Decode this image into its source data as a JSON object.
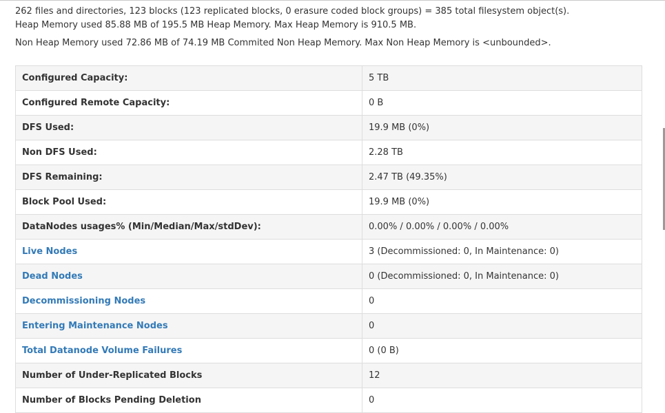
{
  "summary": {
    "line1": "262 files and directories, 123 blocks (123 replicated blocks, 0 erasure coded block groups) = 385 total filesystem object(s).",
    "line2": "Heap Memory used 85.88 MB of 195.5 MB Heap Memory. Max Heap Memory is 910.5 MB.",
    "line3": "Non Heap Memory used 72.86 MB of 74.19 MB Commited Non Heap Memory. Max Non Heap Memory is <unbounded>."
  },
  "rows": [
    {
      "label": "Configured Capacity:",
      "value": "5 TB"
    },
    {
      "label": "Configured Remote Capacity:",
      "value": "0 B"
    },
    {
      "label": "DFS Used:",
      "value": "19.9 MB (0%)"
    },
    {
      "label": "Non DFS Used:",
      "value": "2.28 TB"
    },
    {
      "label": "DFS Remaining:",
      "value": "2.47 TB (49.35%)"
    },
    {
      "label": "Block Pool Used:",
      "value": "19.9 MB (0%)"
    },
    {
      "label": "DataNodes usages% (Min/Median/Max/stdDev):",
      "value": "0.00% / 0.00% / 0.00% / 0.00%"
    },
    {
      "label": "Live Nodes",
      "value": "3 (Decommissioned: 0, In Maintenance: 0)"
    },
    {
      "label": "Dead Nodes",
      "value": "0 (Decommissioned: 0, In Maintenance: 0)"
    },
    {
      "label": "Decommissioning Nodes",
      "value": "0"
    },
    {
      "label": "Entering Maintenance Nodes",
      "value": "0"
    },
    {
      "label": "Total Datanode Volume Failures",
      "value": "0 (0 B)"
    },
    {
      "label": "Number of Under-Replicated Blocks",
      "value": "12"
    },
    {
      "label": "Number of Blocks Pending Deletion",
      "value": "0"
    }
  ],
  "link_color": "#337ab7"
}
